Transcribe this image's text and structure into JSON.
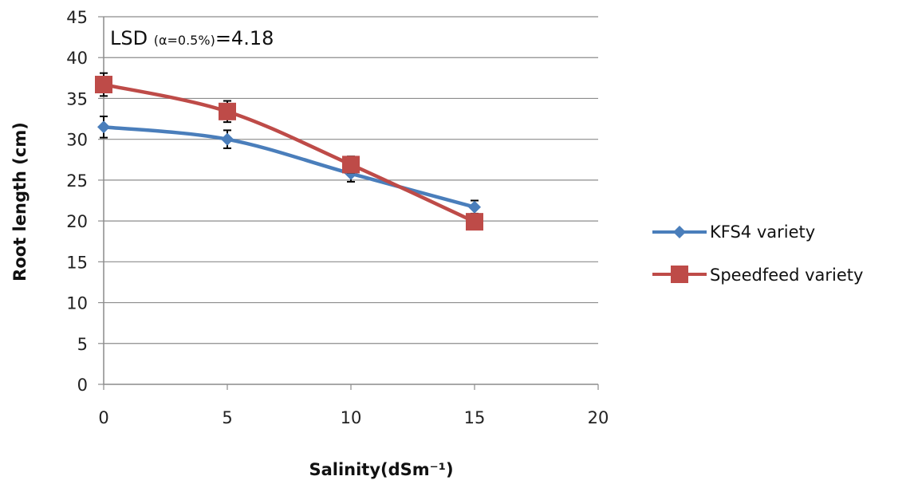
{
  "chart_data": {
    "type": "line",
    "title": "",
    "xlabel": "Salinity(dSm⁻¹)",
    "ylabel": "Root length (cm)",
    "xlim": [
      0,
      20
    ],
    "ylim": [
      0,
      45
    ],
    "x_ticks": [
      0,
      5,
      10,
      15,
      20
    ],
    "y_ticks": [
      0,
      5,
      10,
      15,
      20,
      25,
      30,
      35,
      40,
      45
    ],
    "x": [
      0,
      5,
      10,
      15
    ],
    "grid": "horizontal",
    "legend_position": "right",
    "annotation": {
      "prefix": "LSD ",
      "subscript": "(α=0.5%)",
      "suffix": "=4.18"
    },
    "series": [
      {
        "name": "KFS4 variety",
        "color": "#4a7ebb",
        "marker": "diamond",
        "values": [
          31.5,
          30.0,
          25.8,
          21.7
        ],
        "errors": [
          1.3,
          1.1,
          1.0,
          0.8
        ]
      },
      {
        "name": "Speedfeed variety",
        "color": "#be4b48",
        "marker": "square",
        "values": [
          36.7,
          33.4,
          26.9,
          19.9
        ],
        "errors": [
          1.4,
          1.3,
          1.0,
          0.8
        ]
      }
    ]
  }
}
